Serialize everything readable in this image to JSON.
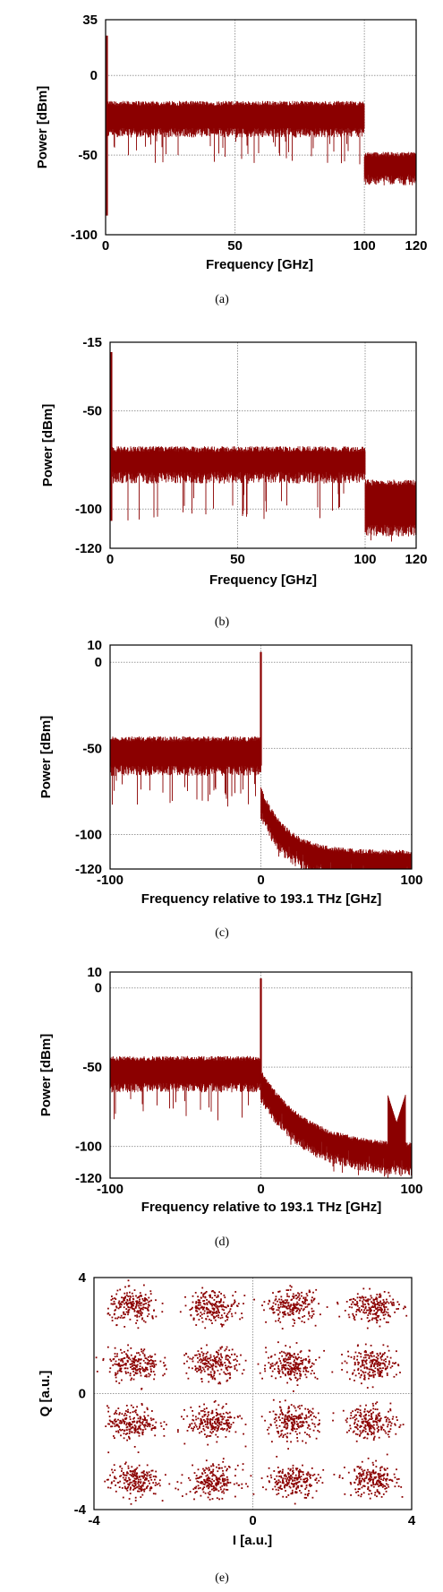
{
  "colors": {
    "trace": "#8b0000",
    "grid": "#9a9a9a",
    "frame": "#000000"
  },
  "chart_data": [
    {
      "type": "line",
      "caption": "(a)",
      "xlabel": "Frequency [GHz]",
      "ylabel": "Power [dBm]",
      "xlim": [
        0,
        120
      ],
      "ylim": [
        -100,
        35
      ],
      "xticks": [
        0,
        50,
        100,
        120
      ],
      "yticks": [
        35,
        0,
        -50,
        -100
      ],
      "xgrid": [
        50,
        100
      ],
      "ygrid": [
        0,
        -50
      ],
      "series": [
        {
          "segments": [
            {
              "x": [
                0,
                100
              ],
              "mean": -26,
              "spread": 7,
              "dips": -56
            },
            {
              "x": [
                100,
                120
              ],
              "mean": -57,
              "spread": 6,
              "dips": -67
            }
          ],
          "spike": {
            "x": 0.5,
            "y": 25,
            "low": -88
          }
        }
      ]
    },
    {
      "type": "line",
      "caption": "(b)",
      "xlabel": "Frequency [GHz]",
      "ylabel": "Power [dBm]",
      "xlim": [
        0,
        120
      ],
      "ylim": [
        -120,
        -15
      ],
      "xticks": [
        0,
        50,
        100,
        120
      ],
      "yticks": [
        -15,
        -50,
        -100,
        -120
      ],
      "xgrid": [
        50,
        100
      ],
      "ygrid": [
        -50,
        -100
      ],
      "series": [
        {
          "segments": [
            {
              "x": [
                0,
                100
              ],
              "mean": -76,
              "spread": 5,
              "dips": -106
            },
            {
              "x": [
                100,
                120
              ],
              "mean": -98,
              "spread": 10,
              "dips": -120
            }
          ],
          "spike": {
            "x": 0.5,
            "y": -20,
            "low": -106
          }
        }
      ]
    },
    {
      "type": "line",
      "caption": "(c)",
      "xlabel": "Frequency relative to 193.1 THz [GHz]",
      "ylabel": "Power [dBm]",
      "xlim": [
        -100,
        100
      ],
      "ylim": [
        -120,
        10
      ],
      "xticks": [
        -100,
        0,
        100
      ],
      "yticks": [
        10,
        0,
        -50,
        -100,
        -120
      ],
      "xgrid": [
        0
      ],
      "ygrid": [
        0,
        -50,
        -100
      ],
      "series": [
        {
          "segments": [
            {
              "x": [
                -100,
                0
              ],
              "mean": -53,
              "spread": 7,
              "dips": -84
            },
            {
              "x": [
                0,
                100
              ],
              "decay": {
                "start": -80,
                "end": -117,
                "k": 0.06
              },
              "spread": 5
            }
          ],
          "spike": {
            "x": 0,
            "y": 6,
            "low": -60
          }
        }
      ]
    },
    {
      "type": "line",
      "caption": "(d)",
      "xlabel": "Frequency relative to 193.1 THz [GHz]",
      "ylabel": "Power [dBm]",
      "xlim": [
        -100,
        100
      ],
      "ylim": [
        -120,
        10
      ],
      "xticks": [
        -100,
        0,
        100
      ],
      "yticks": [
        10,
        0,
        -50,
        -100,
        -120
      ],
      "xgrid": [
        0
      ],
      "ygrid": [
        0,
        -50,
        -100
      ],
      "series": [
        {
          "segments": [
            {
              "x": [
                -100,
                0
              ],
              "mean": -53,
              "spread": 7,
              "dips": -84
            },
            {
              "x": [
                0,
                100
              ],
              "decay": {
                "start": -60,
                "end": -108,
                "k": 0.035
              },
              "spread": 6
            }
          ],
          "spike": {
            "x": 0,
            "y": 6,
            "low": -60
          },
          "bump": {
            "x": 90,
            "y": -85
          }
        }
      ]
    },
    {
      "type": "scatter",
      "caption": "(e)",
      "xlabel": "I [a.u.]",
      "ylabel": "Q [a.u.]",
      "xlim": [
        -4,
        4
      ],
      "ylim": [
        -4,
        4
      ],
      "xticks": [
        -4,
        0,
        4
      ],
      "yticks": [
        4,
        0,
        -4
      ],
      "xgrid": [
        0
      ],
      "ygrid": [
        0
      ],
      "constellation": {
        "levels": [
          -3,
          -1,
          1,
          3
        ],
        "points_per_symbol": 220,
        "sigma": 0.32
      }
    }
  ]
}
